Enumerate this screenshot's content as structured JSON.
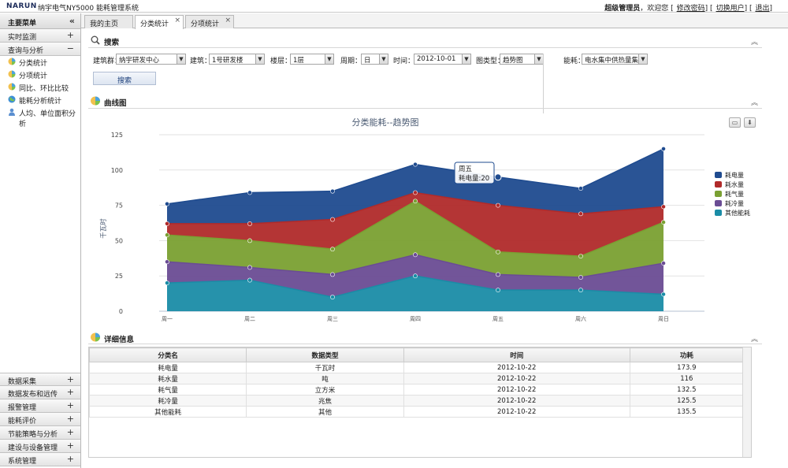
{
  "header": {
    "logo_main": "NARUN",
    "app_title": "纳宇电气NY5000 能耗管理系统",
    "user": "超级管理员",
    "welcome": "，欢迎您",
    "links": [
      "修改密码",
      "切换用户",
      "退出"
    ]
  },
  "sidebar": {
    "title": "主要菜单",
    "collapse": "«",
    "top_groups": [
      {
        "label": "实时监测",
        "sign": "+"
      },
      {
        "label": "查询与分析",
        "sign": "−"
      }
    ],
    "items": [
      {
        "label": "分类统计",
        "icon": "pie-chart-icon"
      },
      {
        "label": "分项统计",
        "icon": "pie-chart-icon"
      },
      {
        "label": "同比、环比比较",
        "icon": "pie-chart-icon"
      },
      {
        "label": "能耗分析统计",
        "icon": "globe-icon"
      },
      {
        "label": "人均、单位面积分析",
        "icon": "user-icon"
      }
    ],
    "bottom_groups": [
      {
        "label": "数据采集",
        "sign": "+"
      },
      {
        "label": "数据发布和远传",
        "sign": "+"
      },
      {
        "label": "报警管理",
        "sign": "+"
      },
      {
        "label": "能耗评价",
        "sign": "+"
      },
      {
        "label": "节能策略与分析",
        "sign": "+"
      },
      {
        "label": "建设与设备管理",
        "sign": "+"
      },
      {
        "label": "系统管理",
        "sign": "+"
      }
    ]
  },
  "tabs": [
    {
      "label": "我的主页"
    },
    {
      "label": "分类统计",
      "close": "×"
    },
    {
      "label": "分项统计",
      "close": "×"
    }
  ],
  "search": {
    "title": "搜索",
    "collapse": "︽",
    "filters": {
      "building_group_label": "建筑群：",
      "building_group_value": "纳宇研发中心",
      "building_label": "建筑：",
      "building_value": "1号研发楼",
      "floor_label": "楼层：",
      "floor_value": "1层",
      "period_label": "周期：",
      "period_value": "日",
      "time_label": "时间：",
      "time_value": "2012-10-01",
      "chart_type_label": "图类型：",
      "chart_type_value": "趋势图",
      "energy_label": "能耗：",
      "energy_value": "电水集中供热量集中"
    },
    "button": "搜索"
  },
  "chart_section": {
    "title": "曲线图",
    "collapse": "︽",
    "tooltip": {
      "day": "周五",
      "text": "耗电量:20"
    }
  },
  "chart_data": {
    "type": "area",
    "stacked": true,
    "title": "分类能耗--趋势图",
    "xlabel": "",
    "ylabel": "千瓦时",
    "categories": [
      "周一",
      "周二",
      "周三",
      "周四",
      "周五",
      "周六",
      "周日"
    ],
    "ylim": [
      0,
      125
    ],
    "yticks": [
      0,
      25,
      50,
      75,
      100,
      125
    ],
    "grid": true,
    "legend_position": "right",
    "series": [
      {
        "name": "耗电量",
        "color": "#1f4b8f",
        "values": [
          14,
          22,
          20,
          20,
          20,
          18,
          41
        ]
      },
      {
        "name": "耗水量",
        "color": "#b02a2a",
        "values": [
          8,
          12,
          21,
          6,
          33,
          30,
          11
        ]
      },
      {
        "name": "耗气量",
        "color": "#7aa032",
        "values": [
          19,
          19,
          18,
          38,
          16,
          15,
          29
        ]
      },
      {
        "name": "耗冷量",
        "color": "#6a4c94",
        "values": [
          15,
          9,
          16,
          15,
          11,
          9,
          22
        ]
      },
      {
        "name": "其他能耗",
        "color": "#1a8ca6",
        "values": [
          20,
          22,
          10,
          25,
          15,
          15,
          12
        ]
      }
    ]
  },
  "detail": {
    "title": "详细信息",
    "collapse": "︽",
    "columns": [
      "分类名",
      "数据类型",
      "时间",
      "功耗"
    ],
    "rows": [
      [
        "耗电量",
        "千瓦时",
        "2012-10-22",
        "173.9"
      ],
      [
        "耗水量",
        "吨",
        "2012-10-22",
        "116"
      ],
      [
        "耗气量",
        "立方米",
        "2012-10-22",
        "132.5"
      ],
      [
        "耗冷量",
        "兆焦",
        "2012-10-22",
        "125.5"
      ],
      [
        "其他能耗",
        "其他",
        "2012-10-22",
        "135.5"
      ]
    ]
  }
}
